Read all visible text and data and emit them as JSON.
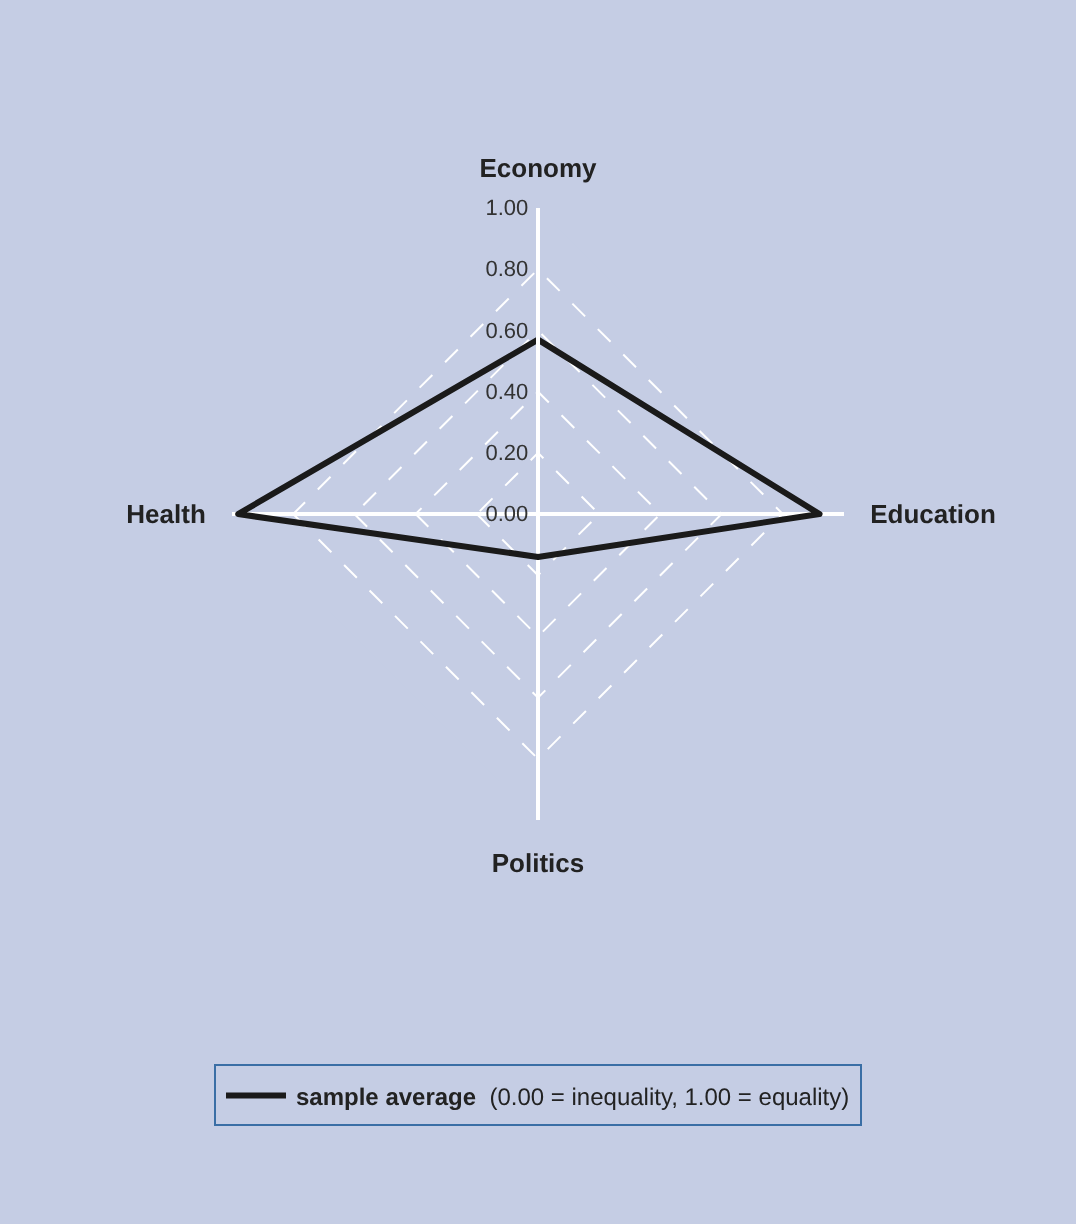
{
  "chart_data": {
    "type": "radar",
    "categories": [
      "Economy",
      "Education",
      "Politics",
      "Health"
    ],
    "series": [
      {
        "name": "sample average",
        "color": "#1a1a1a",
        "values": [
          0.57,
          0.92,
          0.14,
          0.98
        ]
      }
    ],
    "ylim": [
      0,
      1
    ],
    "yticks": [
      {
        "value": 0,
        "label": "0.00"
      },
      {
        "value": 0.2,
        "label": "0.20"
      },
      {
        "value": 0.4,
        "label": "0.40"
      },
      {
        "value": 0.6,
        "label": "0.60"
      },
      {
        "value": 0.8,
        "label": "0.80"
      },
      {
        "value": 1,
        "label": "1.00"
      }
    ],
    "grid": true,
    "legend": "bottom",
    "marker": "none",
    "line_style": "solid",
    "annotations": [
      "(0.00 = inequality, 1.00 = equality)"
    ]
  }
}
